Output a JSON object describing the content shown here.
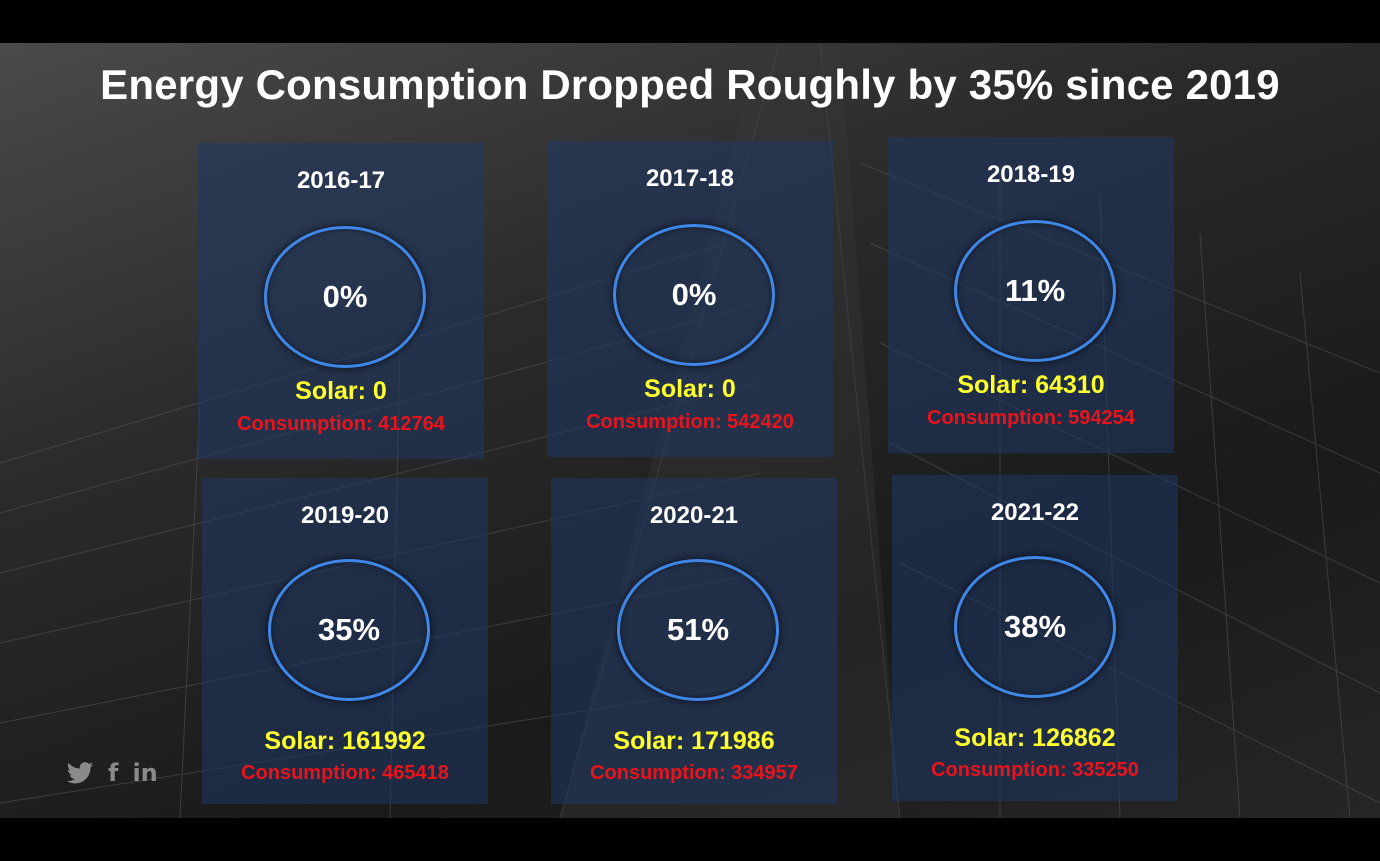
{
  "slide": {
    "title": "Energy Consumption Dropped Roughly by 35% since 2019"
  },
  "cards": [
    {
      "year": "2016-17",
      "percent": "0%",
      "solar": "Solar: 0",
      "consumption": "Consumption: 412764"
    },
    {
      "year": "2017-18",
      "percent": "0%",
      "solar": "Solar: 0",
      "consumption": "Consumption: 542420"
    },
    {
      "year": "2018-19",
      "percent": "11%",
      "solar": "Solar: 64310",
      "consumption": "Consumption: 594254"
    },
    {
      "year": "2019-20",
      "percent": "35%",
      "solar": "Solar: 161992",
      "consumption": "Consumption: 465418"
    },
    {
      "year": "2020-21",
      "percent": "51%",
      "solar": "Solar: 171986",
      "consumption": "Consumption: 334957"
    },
    {
      "year": "2021-22",
      "percent": "38%",
      "solar": "Solar: 126862",
      "consumption": "Consumption: 335250"
    }
  ],
  "social": {
    "icons": [
      "twitter-icon",
      "facebook-icon",
      "linkedin-icon"
    ],
    "facebook_glyph": "f",
    "linkedin_glyph": "in"
  },
  "colors": {
    "solar": "#ffff2e",
    "consumption": "#e8141c",
    "ring": "#3f87e6"
  }
}
